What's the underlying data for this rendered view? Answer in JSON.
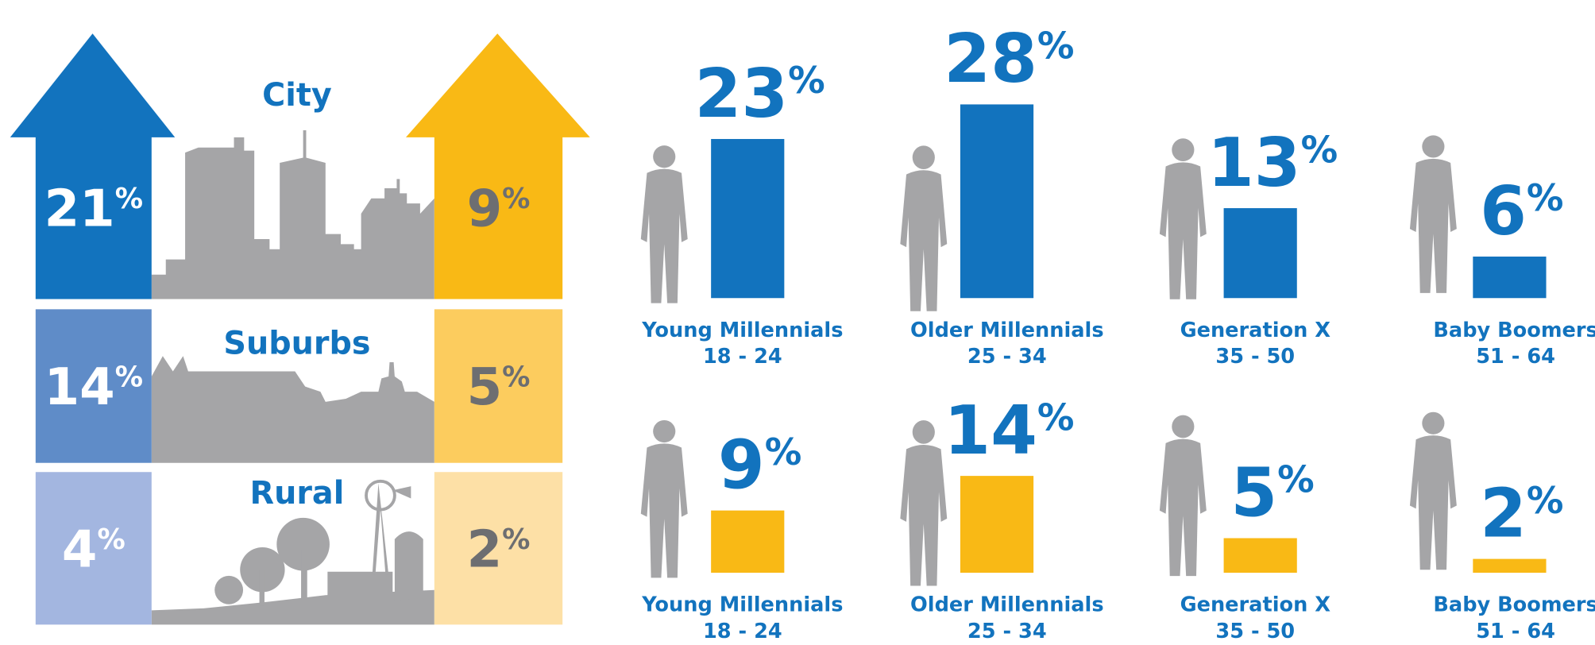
{
  "chart_data": [
    {
      "type": "arrow-table",
      "categories": [
        "City",
        "Suburbs",
        "Rural"
      ],
      "series": [
        {
          "colors": [
            "#1273be",
            "#5f8cc8",
            "#a3b6e0"
          ],
          "values": [
            21,
            14,
            4
          ],
          "value_labels": [
            "21%",
            "14%",
            "4%"
          ]
        },
        {
          "colors": [
            "#f9b915",
            "#fccc5e",
            "#fde0a6"
          ],
          "values": [
            9,
            5,
            2
          ],
          "value_labels": [
            "9%",
            "5%",
            "2%"
          ]
        }
      ]
    },
    {
      "type": "bar",
      "categories": [
        "Young Millennials",
        "Older Millennials",
        "Generation X",
        "Baby Boomers"
      ],
      "subcategories": [
        "18 - 24",
        "25 - 34",
        "35 - 50",
        "51 - 64"
      ],
      "color": "#1273be",
      "values": [
        23,
        28,
        13,
        6
      ],
      "value_labels": [
        "23%",
        "28%",
        "13%",
        "6%"
      ]
    },
    {
      "type": "bar",
      "categories": [
        "Young Millennials",
        "Older Millennials",
        "Generation X",
        "Baby Boomers"
      ],
      "subcategories": [
        "18 - 24",
        "25 - 34",
        "35 - 50",
        "51 - 64"
      ],
      "color": "#f9b915",
      "values": [
        9,
        14,
        5,
        2
      ],
      "value_labels": [
        "9%",
        "14%",
        "5%",
        "2%"
      ]
    }
  ]
}
